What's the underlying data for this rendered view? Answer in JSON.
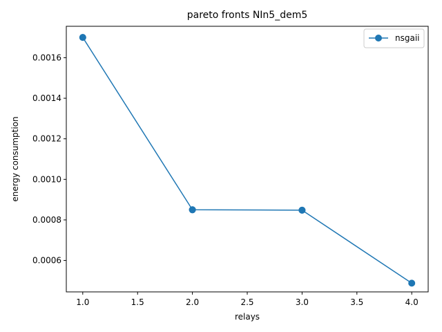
{
  "chart_data": {
    "type": "line",
    "title": "pareto fronts NIn5_dem5",
    "xlabel": "relays",
    "ylabel": "energy consumption",
    "x_ticks": [
      1.0,
      1.5,
      2.0,
      2.5,
      3.0,
      3.5,
      4.0
    ],
    "x_tick_labels": [
      "1.0",
      "1.5",
      "2.0",
      "2.5",
      "3.0",
      "3.5",
      "4.0"
    ],
    "y_ticks": [
      0.0006,
      0.0008,
      0.001,
      0.0012,
      0.0014,
      0.0016
    ],
    "y_tick_labels": [
      "0.0006",
      "0.0008",
      "0.0010",
      "0.0012",
      "0.0014",
      "0.0016"
    ],
    "xlim": [
      0.85,
      4.15
    ],
    "ylim": [
      0.000445,
      0.001755
    ],
    "grid": false,
    "legend": "top-right",
    "series": [
      {
        "name": "nsgaii",
        "color": "#1f77b4",
        "marker": "circle",
        "x": [
          1.0,
          1.0,
          2.0,
          2.0,
          3.0,
          3.0,
          4.0
        ],
        "y": [
          0.0017,
          0.0017,
          0.00085,
          0.00085,
          0.000848,
          0.000848,
          0.000488
        ]
      }
    ]
  }
}
